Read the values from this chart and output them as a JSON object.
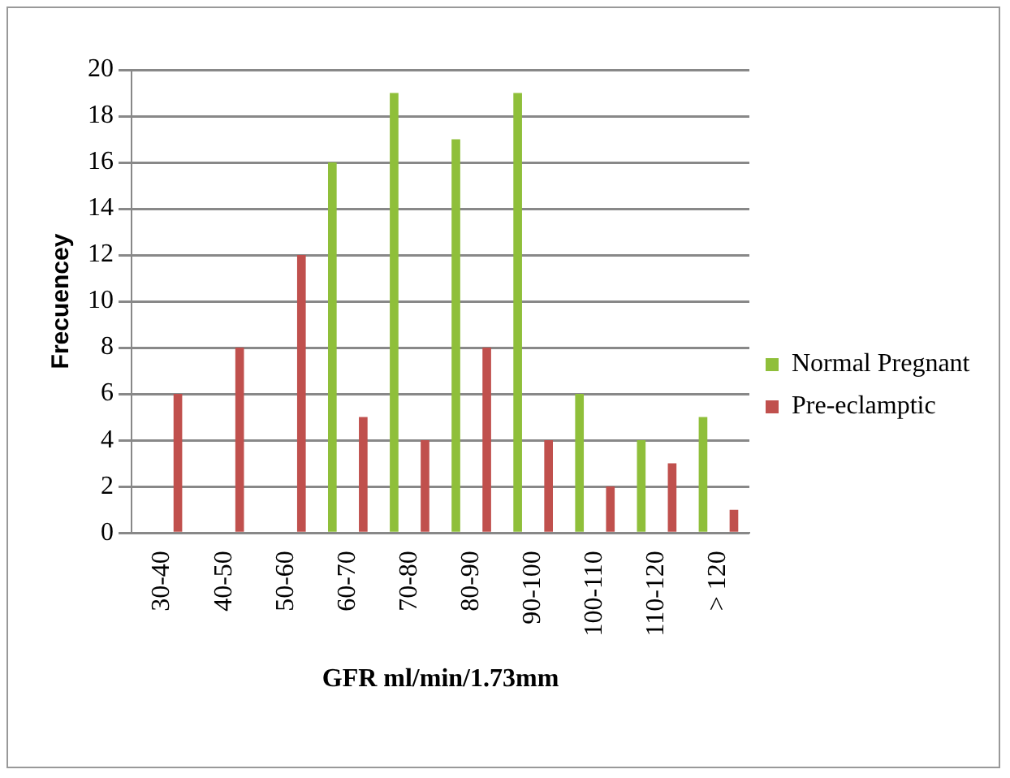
{
  "chart_data": {
    "type": "bar",
    "xlabel": "GFR ml/min/1.73mm",
    "ylabel": "Frecuencey",
    "categories": [
      "30-40",
      "40-50",
      "50-60",
      "60-70",
      "70-80",
      "80-90",
      "90-100",
      "100-110",
      "110-120",
      "> 120"
    ],
    "series": [
      {
        "name": "Normal Pregnant",
        "color": "#8fbf3a",
        "values": [
          0,
          0,
          0,
          16,
          19,
          17,
          19,
          6,
          4,
          5
        ]
      },
      {
        "name": "Pre-eclamptic",
        "color": "#c0504d",
        "values": [
          6,
          8,
          12,
          5,
          4,
          8,
          4,
          2,
          3,
          1
        ]
      }
    ],
    "ylim": [
      0,
      20
    ],
    "yticks": [
      0,
      2,
      4,
      6,
      8,
      10,
      12,
      14,
      16,
      18,
      20
    ],
    "grid": "y",
    "legend": "right"
  }
}
